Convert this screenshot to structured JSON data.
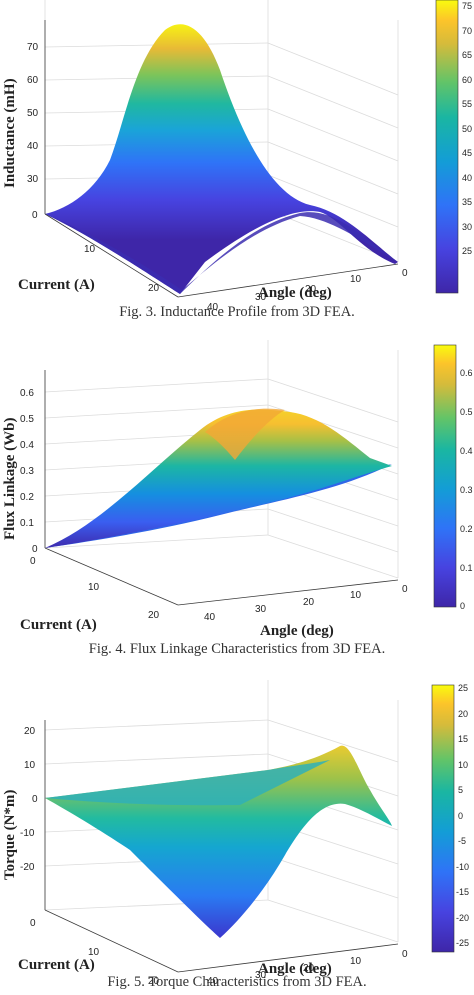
{
  "figures": [
    {
      "caption": "Fig. 3.   Inductance Profile from 3D FEA.",
      "zlabel": "Inductance (mH)",
      "xlabel": "Current (A)",
      "ylabel": "Angle (deg)",
      "z_ticks": [
        "30",
        "40",
        "50",
        "60",
        "70"
      ],
      "z_zero": "0",
      "current_ticks": [
        "0",
        "10",
        "20"
      ],
      "angle_ticks": [
        "40",
        "30",
        "20",
        "10",
        "0"
      ],
      "colorbar_ticks": [
        "75",
        "70",
        "65",
        "60",
        "55",
        "50",
        "45",
        "40",
        "35",
        "30",
        "25"
      ]
    },
    {
      "caption": "Fig. 4.   Flux Linkage Characteristics from 3D FEA.",
      "zlabel": "Flux Linkage (Wb)",
      "xlabel": "Current (A)",
      "ylabel": "Angle (deg)",
      "z_ticks": [
        "0.6",
        "0.5",
        "0.4",
        "0.3",
        "0.2",
        "0.1",
        "0"
      ],
      "current_ticks": [
        "0",
        "10",
        "20"
      ],
      "angle_ticks": [
        "40",
        "30",
        "20",
        "10",
        "0"
      ],
      "colorbar_ticks": [
        "0.6",
        "0.5",
        "0.4",
        "0.3",
        "0.2",
        "0.1",
        "0"
      ]
    },
    {
      "caption": "Fig. 5.   Torque Characteristics from 3D FEA.",
      "zlabel": "Torque (N*m)",
      "xlabel": "Current (A)",
      "ylabel": "Angle (deg)",
      "z_ticks": [
        "20",
        "10",
        "0",
        "-10",
        "-20"
      ],
      "current_ticks": [
        "0",
        "10",
        "20"
      ],
      "angle_ticks": [
        "40",
        "30",
        "20",
        "10",
        "0"
      ],
      "colorbar_ticks": [
        "25",
        "20",
        "15",
        "10",
        "5",
        "0",
        "-5",
        "-10",
        "-15",
        "-20",
        "-25"
      ]
    }
  ],
  "colors": {
    "parula_low": "#3e26a8",
    "parula_mid": "#1fb4a4",
    "parula_high": "#f9fb0e"
  },
  "chart_data": [
    {
      "type": "surface",
      "title": "Inductance Profile from 3D FEA",
      "x_label": "Current (A)",
      "x_range": [
        0,
        20
      ],
      "y_label": "Angle (deg)",
      "y_range": [
        0,
        45
      ],
      "z_label": "Inductance (mH)",
      "z_range": [
        20,
        77
      ],
      "colorbar_range": [
        22,
        77
      ],
      "sample": {
        "angle": [
          0,
          10,
          20,
          30,
          40,
          45
        ],
        "z_at_low_current": [
          22,
          30,
          52,
          74,
          40,
          22
        ]
      }
    },
    {
      "type": "surface",
      "title": "Flux Linkage Characteristics from 3D FEA",
      "x_label": "Current (A)",
      "x_range": [
        0,
        20
      ],
      "y_label": "Angle (deg)",
      "y_range": [
        0,
        45
      ],
      "z_label": "Flux Linkage (Wb)",
      "z_range": [
        0,
        0.65
      ],
      "colorbar_range": [
        0,
        0.67
      ]
    },
    {
      "type": "surface",
      "title": "Torque Characteristics from 3D FEA",
      "x_label": "Current (A)",
      "x_range": [
        0,
        20
      ],
      "y_label": "Angle (deg)",
      "y_range": [
        0,
        45
      ],
      "z_label": "Torque (N*m)",
      "z_range": [
        -27,
        25
      ],
      "colorbar_range": [
        -27,
        25
      ]
    }
  ]
}
